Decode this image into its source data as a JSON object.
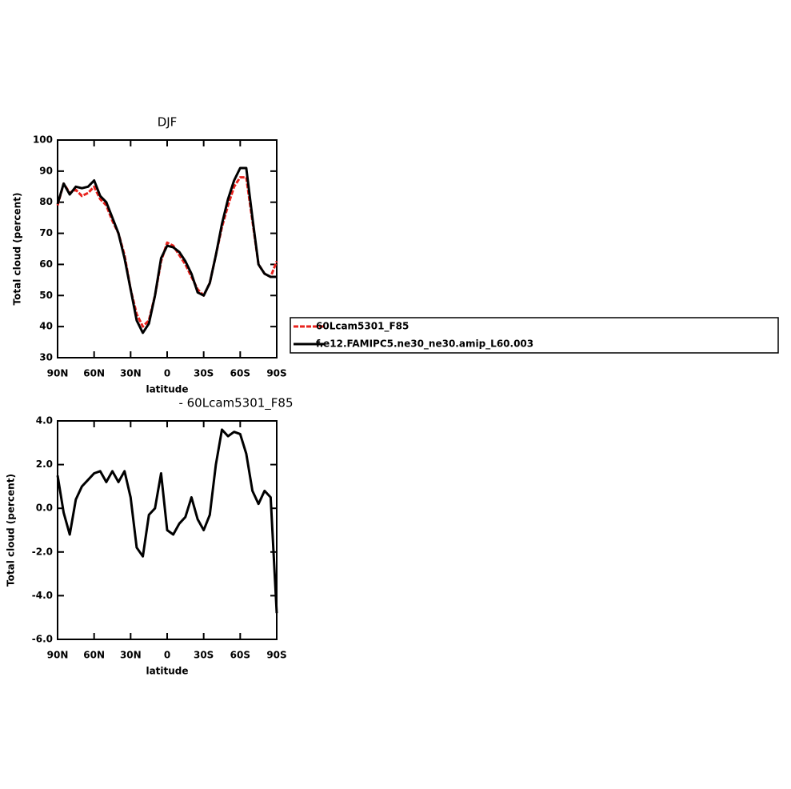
{
  "chart_data": [
    {
      "type": "line",
      "title": "DJF",
      "xlabel": "latitude",
      "ylabel": "Total cloud (percent)",
      "x": [
        90,
        85,
        80,
        75,
        70,
        65,
        60,
        55,
        50,
        45,
        40,
        35,
        30,
        25,
        20,
        15,
        10,
        5,
        0,
        -5,
        -10,
        -15,
        -20,
        -25,
        -30,
        -35,
        -40,
        -45,
        -50,
        -55,
        -60,
        -65,
        -70,
        -75,
        -80,
        -85,
        -90
      ],
      "series": [
        {
          "name": "60Lcam5301_F85",
          "color": "#e8231e",
          "dashed": true,
          "values": [
            79,
            86,
            83,
            84,
            82,
            83,
            85,
            81,
            79,
            74,
            70,
            63,
            52,
            44,
            40,
            42,
            50,
            61,
            67,
            66,
            63,
            60,
            56,
            52,
            50,
            54,
            63,
            72,
            79,
            85,
            88,
            88,
            74,
            60,
            57,
            56,
            61
          ]
        },
        {
          "name": "f.e12.FAMIPC5.ne30_ne30.amip_L60.003",
          "color": "#000000",
          "dashed": false,
          "values": [
            79.4,
            86,
            82.5,
            85,
            84.5,
            85,
            87,
            82,
            80,
            75,
            70,
            62,
            52,
            42,
            38,
            41,
            50,
            62,
            66,
            65.5,
            64,
            61,
            57,
            51,
            50,
            54,
            63,
            73,
            81,
            87,
            91,
            91,
            75,
            60,
            57,
            56,
            56
          ]
        }
      ],
      "xlim": [
        90,
        -90
      ],
      "xticks": [
        {
          "value": 90,
          "label": "90N"
        },
        {
          "value": 60,
          "label": "60N"
        },
        {
          "value": 30,
          "label": "30N"
        },
        0,
        {
          "value": -30,
          "label": "30S"
        },
        {
          "value": -60,
          "label": "60S"
        },
        {
          "value": -90,
          "label": "90S"
        }
      ],
      "ylim": [
        30,
        100
      ],
      "yticks": [
        30,
        40,
        50,
        60,
        70,
        80,
        90,
        100
      ]
    },
    {
      "type": "line",
      "title": "- 60Lcam5301_F85",
      "xlabel": "latitude",
      "ylabel": "Total cloud (percent)",
      "x": [
        90,
        85,
        80,
        75,
        70,
        65,
        60,
        55,
        50,
        45,
        40,
        35,
        30,
        25,
        20,
        15,
        10,
        5,
        0,
        -5,
        -10,
        -15,
        -20,
        -25,
        -30,
        -35,
        -40,
        -45,
        -50,
        -55,
        -60,
        -65,
        -70,
        -75,
        -80,
        -85,
        -90
      ],
      "color": "#000000",
      "values": [
        1.5,
        -0.2,
        -1.2,
        0.4,
        1.0,
        1.3,
        1.6,
        1.7,
        1.2,
        1.7,
        1.2,
        1.7,
        0.5,
        -1.8,
        -2.2,
        -0.3,
        0.0,
        1.6,
        -1.0,
        -1.2,
        -0.7,
        -0.4,
        0.5,
        -0.5,
        -1.0,
        -0.3,
        2.0,
        3.6,
        3.3,
        3.5,
        3.4,
        2.5,
        0.8,
        0.2,
        0.8,
        0.5,
        -4.8
      ],
      "xlim": [
        90,
        -90
      ],
      "xticks": [
        {
          "value": 90,
          "label": "90N"
        },
        {
          "value": 60,
          "label": "60N"
        },
        {
          "value": 30,
          "label": "30N"
        },
        0,
        {
          "value": -30,
          "label": "30S"
        },
        {
          "value": -60,
          "label": "60S"
        },
        {
          "value": -90,
          "label": "90S"
        }
      ],
      "ylim": [
        -6,
        4
      ],
      "yticks": [
        {
          "value": -6,
          "label": "-6.0"
        },
        {
          "value": -4,
          "label": "-4.0"
        },
        {
          "value": -2,
          "label": "-2.0"
        },
        {
          "value": 0,
          "label": "0.0"
        },
        {
          "value": 2,
          "label": "2.0"
        },
        {
          "value": 4,
          "label": "4.0"
        }
      ]
    }
  ]
}
